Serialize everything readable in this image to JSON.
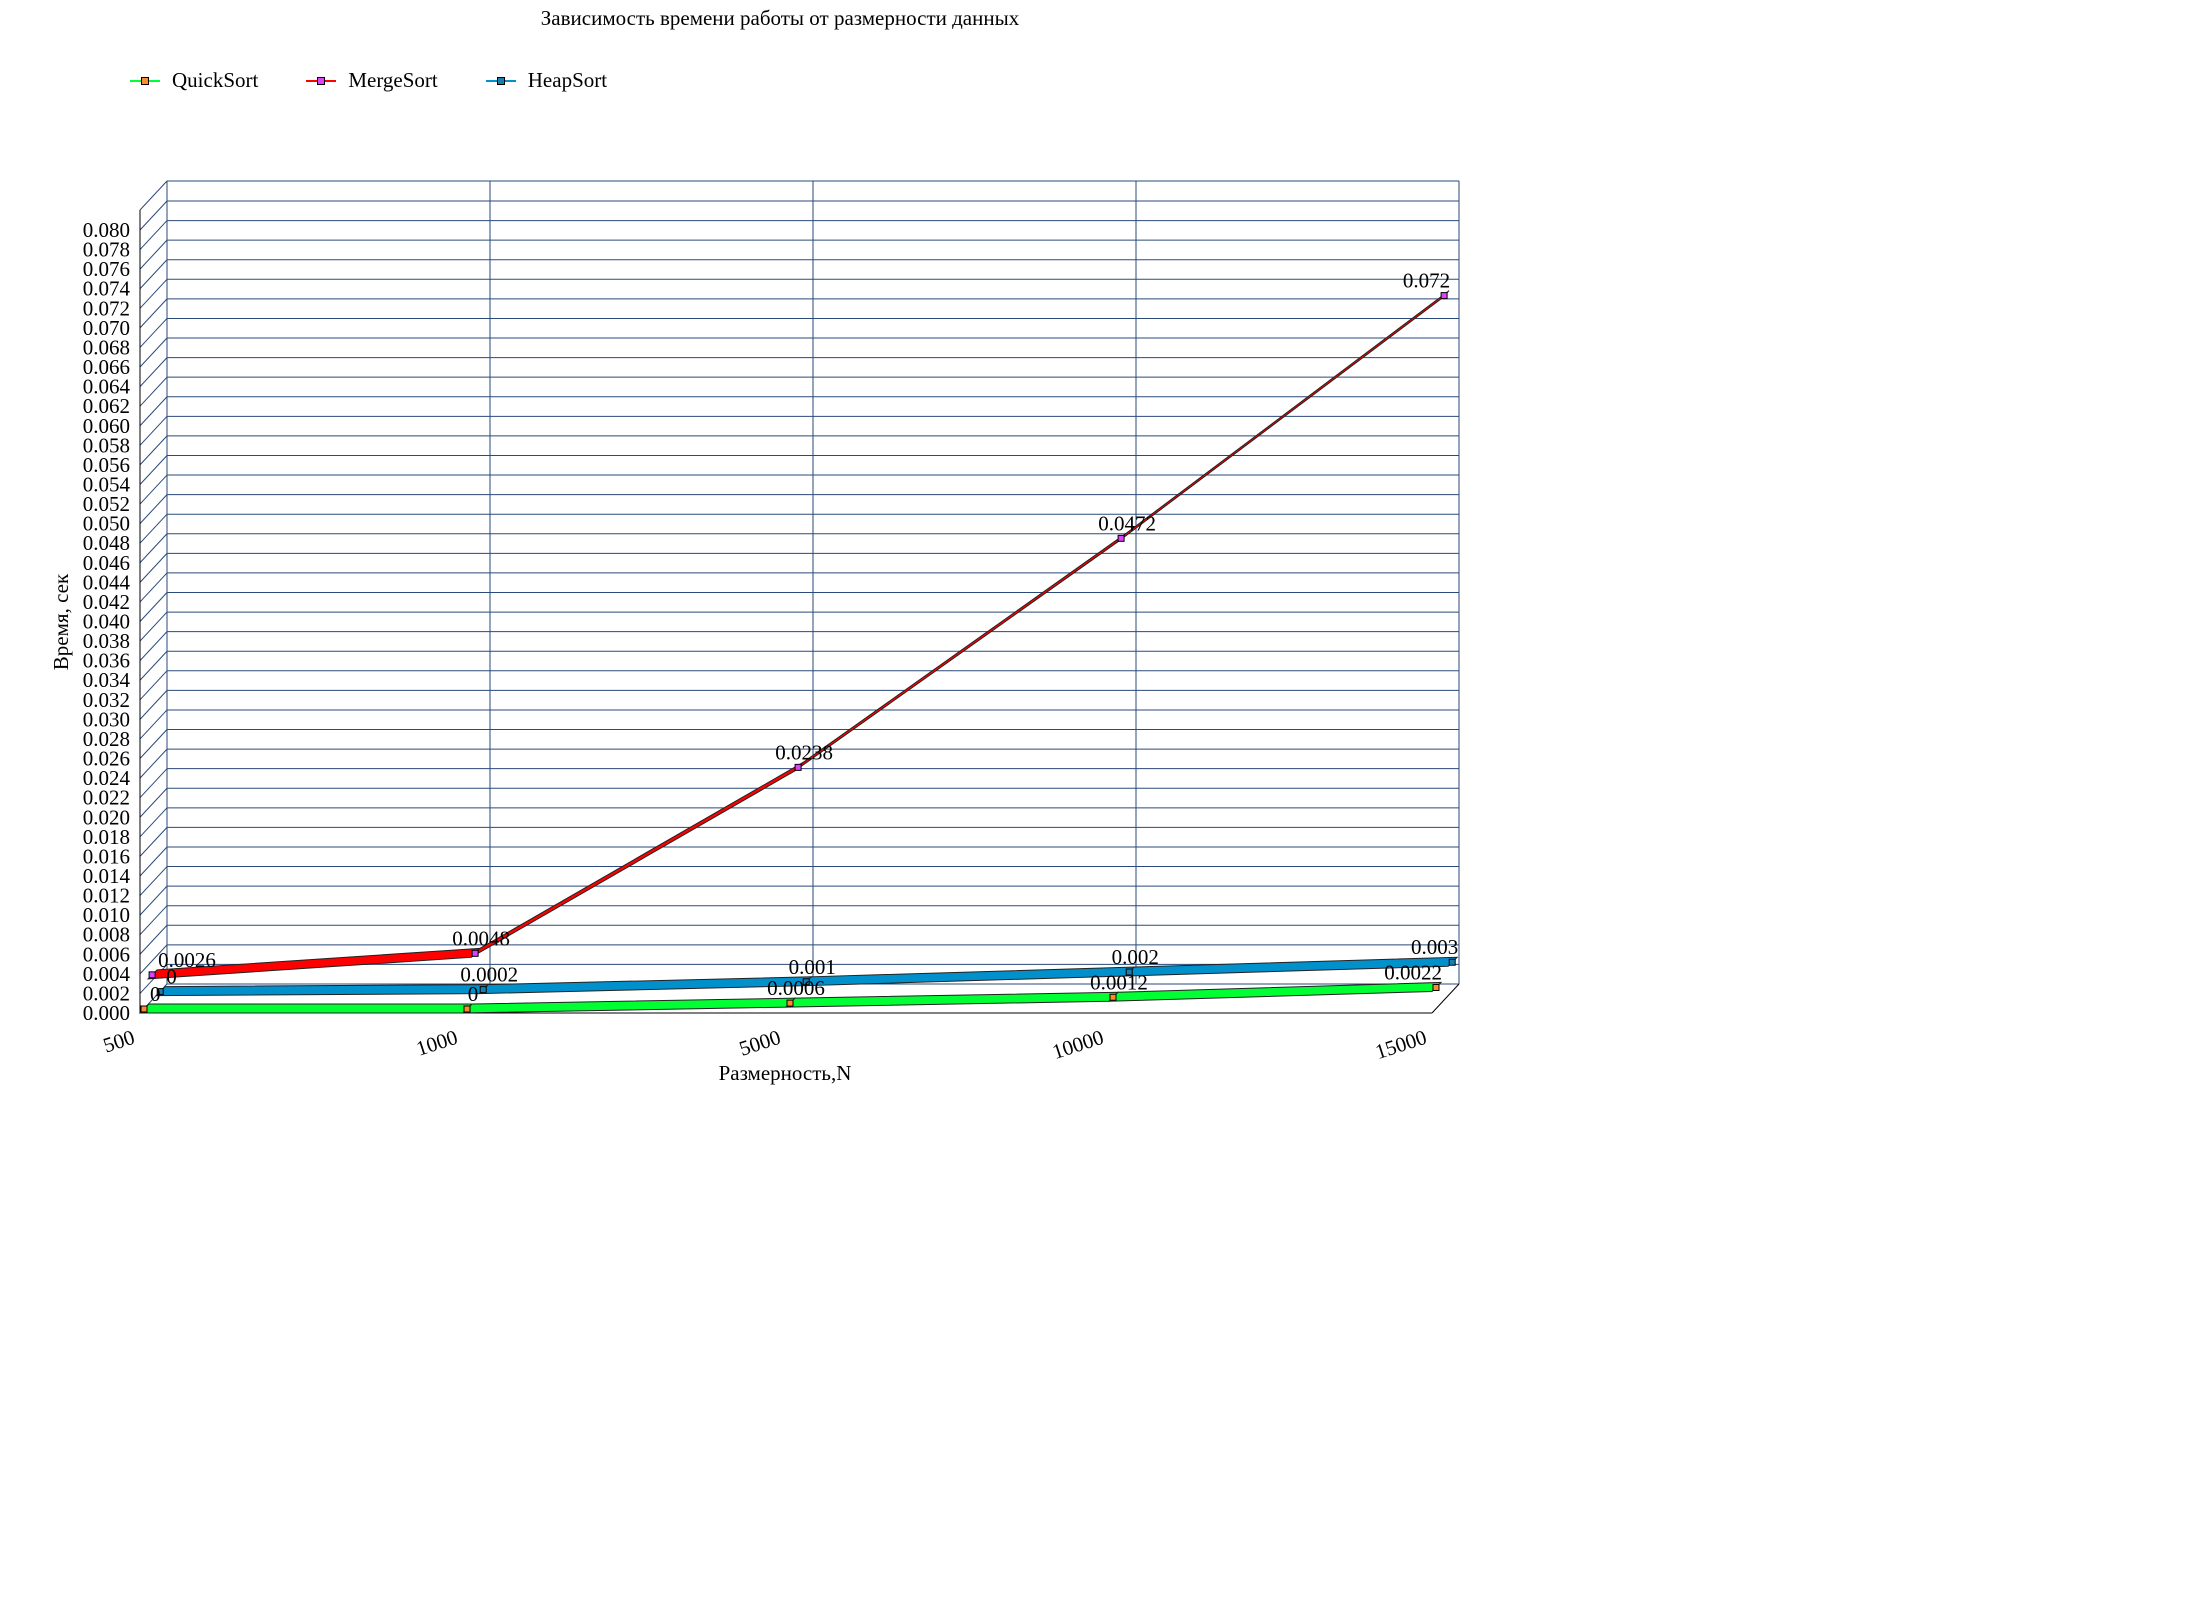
{
  "chart_data": {
    "type": "line",
    "title": "Зависимость времени работы от размерности данных",
    "xlabel": "Размерность,N",
    "ylabel": "Время, сек",
    "categories": [
      "500",
      "1000",
      "5000",
      "10000",
      "15000"
    ],
    "ylim": [
      0,
      0.08
    ],
    "ytick_step": 0.002,
    "grid": true,
    "legend_position": "top-left",
    "series": [
      {
        "name": "QuickSort",
        "values": [
          0,
          0,
          0.0006,
          0.0012,
          0.0022
        ],
        "labels": [
          "0",
          "0",
          "0.0006",
          "0.0012",
          "0.0022"
        ],
        "color": "#00ff33",
        "marker_color": "#ff8a2a"
      },
      {
        "name": "MergeSort",
        "values": [
          0.0026,
          0.0048,
          0.0238,
          0.0472,
          0.072
        ],
        "labels": [
          "0.0026",
          "0.0048",
          "0.0238",
          "0.0472",
          "0.072"
        ],
        "color": "#ff0000",
        "marker_color": "#e040ff"
      },
      {
        "name": "HeapSort",
        "values": [
          0,
          0.0002,
          0.001,
          0.002,
          0.003
        ],
        "labels": [
          "0",
          "0.0002",
          "0.001",
          "0.002",
          "0.003"
        ],
        "color": "#0090cc",
        "marker_color": "#1a7fb0"
      }
    ]
  }
}
